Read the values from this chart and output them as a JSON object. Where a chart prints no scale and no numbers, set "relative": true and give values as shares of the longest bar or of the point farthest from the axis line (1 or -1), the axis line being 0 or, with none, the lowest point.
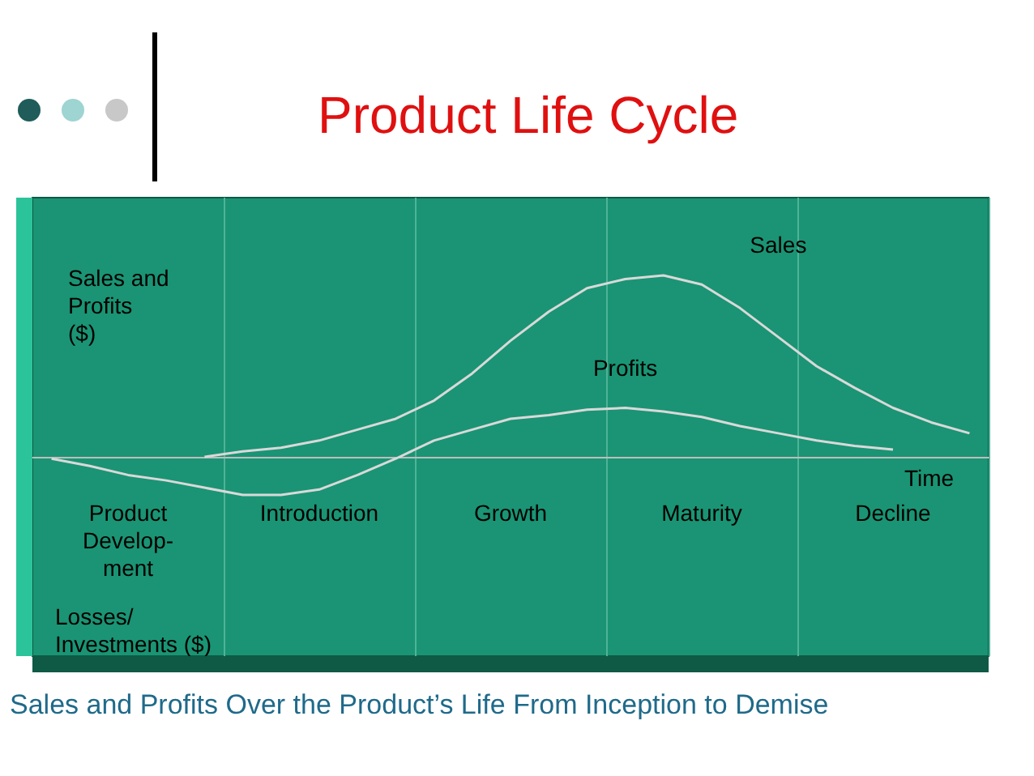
{
  "chart_data": {
    "type": "line",
    "title": "Product Life Cycle",
    "ylabel": "Sales and Profits ($)",
    "xlabel": "Time",
    "relative": true,
    "grid": "x",
    "legend": false,
    "marker": "none",
    "line_style": "solid",
    "categories": [
      null,
      null,
      "Product\nDevelop-\nment",
      null,
      null,
      null,
      null,
      "Introduction",
      null,
      null,
      null,
      null,
      "Growth",
      null,
      null,
      null,
      null,
      "Maturity",
      null,
      null,
      null,
      null,
      "Decline",
      null,
      null
    ],
    "series": [
      {
        "name": "Sales",
        "color": "#d9d9d9",
        "values": [
          null,
          null,
          null,
          null,
          0,
          0.03,
          0.05,
          0.09,
          0.15,
          0.21,
          0.31,
          0.46,
          0.64,
          0.8,
          0.93,
          0.98,
          1,
          0.95,
          0.82,
          0.66,
          0.5,
          0.38,
          0.27,
          0.19,
          0.13
        ]
      },
      {
        "name": "Profits",
        "color": "#d9d9d9",
        "values": [
          -0.01,
          -0.05,
          -0.1,
          -0.13,
          -0.17,
          -0.21,
          -0.21,
          -0.18,
          -0.1,
          -0.01,
          0.09,
          0.15,
          0.21,
          0.23,
          0.26,
          0.27,
          0.25,
          0.22,
          0.17,
          0.13,
          0.09,
          0.06,
          0.04,
          null,
          null
        ]
      }
    ],
    "annotations": [
      "Losses/ Investments ($)",
      "Sales and Profits Over the Product’s Life From Inception to Demise"
    ]
  }
}
